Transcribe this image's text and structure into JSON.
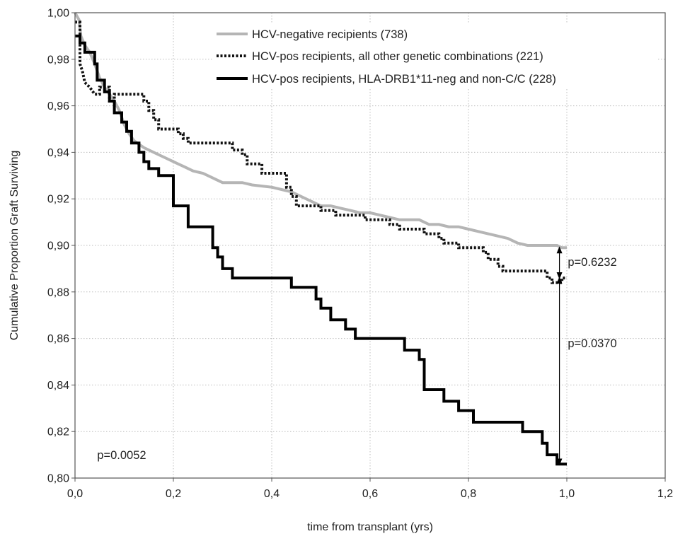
{
  "chart_data": {
    "type": "line",
    "xlabel": "time from transplant (yrs)",
    "ylabel": "Cumulative Proportion Graft Surviving",
    "xlim": [
      0.0,
      1.2
    ],
    "ylim": [
      0.8,
      1.0
    ],
    "xticks": [
      0.0,
      0.2,
      0.4,
      0.6,
      0.8,
      1.0,
      1.2
    ],
    "xtick_labels": [
      "0,0",
      "0,2",
      "0,4",
      "0,6",
      "0,8",
      "1,0",
      "1,2"
    ],
    "yticks": [
      0.8,
      0.82,
      0.84,
      0.86,
      0.88,
      0.9,
      0.92,
      0.94,
      0.96,
      0.98,
      1.0
    ],
    "ytick_labels": [
      "0,80",
      "0,82",
      "0,84",
      "0,86",
      "0,88",
      "0,90",
      "0,92",
      "0,94",
      "0,96",
      "0,98",
      "1,00"
    ],
    "grid": true,
    "legend_position": "top-right",
    "series": [
      {
        "name": "HCV-negative recipients (738)",
        "color": "#b5b5b5",
        "style": "solid-thick",
        "points": [
          [
            0.0,
            1.0
          ],
          [
            0.008,
            0.997
          ],
          [
            0.012,
            0.99
          ],
          [
            0.02,
            0.986
          ],
          [
            0.03,
            0.983
          ],
          [
            0.04,
            0.978
          ],
          [
            0.05,
            0.972
          ],
          [
            0.06,
            0.968
          ],
          [
            0.07,
            0.965
          ],
          [
            0.08,
            0.962
          ],
          [
            0.09,
            0.958
          ],
          [
            0.1,
            0.952
          ],
          [
            0.11,
            0.948
          ],
          [
            0.12,
            0.945
          ],
          [
            0.14,
            0.942
          ],
          [
            0.16,
            0.94
          ],
          [
            0.18,
            0.938
          ],
          [
            0.2,
            0.936
          ],
          [
            0.22,
            0.934
          ],
          [
            0.24,
            0.932
          ],
          [
            0.26,
            0.931
          ],
          [
            0.28,
            0.929
          ],
          [
            0.3,
            0.927
          ],
          [
            0.34,
            0.927
          ],
          [
            0.36,
            0.926
          ],
          [
            0.4,
            0.925
          ],
          [
            0.42,
            0.924
          ],
          [
            0.44,
            0.923
          ],
          [
            0.46,
            0.921
          ],
          [
            0.48,
            0.919
          ],
          [
            0.5,
            0.917
          ],
          [
            0.52,
            0.917
          ],
          [
            0.54,
            0.916
          ],
          [
            0.56,
            0.915
          ],
          [
            0.58,
            0.914
          ],
          [
            0.6,
            0.914
          ],
          [
            0.62,
            0.913
          ],
          [
            0.64,
            0.912
          ],
          [
            0.66,
            0.911
          ],
          [
            0.7,
            0.911
          ],
          [
            0.72,
            0.909
          ],
          [
            0.74,
            0.909
          ],
          [
            0.76,
            0.908
          ],
          [
            0.78,
            0.908
          ],
          [
            0.8,
            0.907
          ],
          [
            0.82,
            0.906
          ],
          [
            0.84,
            0.905
          ],
          [
            0.86,
            0.904
          ],
          [
            0.88,
            0.903
          ],
          [
            0.9,
            0.901
          ],
          [
            0.92,
            0.9
          ],
          [
            0.96,
            0.9
          ],
          [
            0.97,
            0.9
          ],
          [
            0.98,
            0.9
          ],
          [
            0.99,
            0.899
          ],
          [
            1.0,
            0.899
          ]
        ]
      },
      {
        "name": "HCV-pos recipients, all other genetic combinations (221)",
        "color": "#111111",
        "style": "dotted-thick",
        "points": [
          [
            0.0,
            0.996
          ],
          [
            0.01,
            0.996
          ],
          [
            0.01,
            0.978
          ],
          [
            0.015,
            0.975
          ],
          [
            0.02,
            0.97
          ],
          [
            0.03,
            0.968
          ],
          [
            0.04,
            0.965
          ],
          [
            0.05,
            0.965
          ],
          [
            0.05,
            0.968
          ],
          [
            0.07,
            0.968
          ],
          [
            0.07,
            0.962
          ],
          [
            0.08,
            0.962
          ],
          [
            0.08,
            0.965
          ],
          [
            0.14,
            0.965
          ],
          [
            0.14,
            0.962
          ],
          [
            0.15,
            0.962
          ],
          [
            0.15,
            0.958
          ],
          [
            0.16,
            0.958
          ],
          [
            0.16,
            0.954
          ],
          [
            0.17,
            0.954
          ],
          [
            0.17,
            0.95
          ],
          [
            0.21,
            0.95
          ],
          [
            0.21,
            0.948
          ],
          [
            0.22,
            0.948
          ],
          [
            0.22,
            0.946
          ],
          [
            0.23,
            0.946
          ],
          [
            0.23,
            0.944
          ],
          [
            0.32,
            0.944
          ],
          [
            0.32,
            0.941
          ],
          [
            0.34,
            0.941
          ],
          [
            0.34,
            0.939
          ],
          [
            0.35,
            0.939
          ],
          [
            0.35,
            0.935
          ],
          [
            0.38,
            0.935
          ],
          [
            0.38,
            0.931
          ],
          [
            0.43,
            0.931
          ],
          [
            0.43,
            0.925
          ],
          [
            0.44,
            0.925
          ],
          [
            0.44,
            0.921
          ],
          [
            0.45,
            0.921
          ],
          [
            0.45,
            0.917
          ],
          [
            0.5,
            0.917
          ],
          [
            0.5,
            0.915
          ],
          [
            0.53,
            0.915
          ],
          [
            0.53,
            0.913
          ],
          [
            0.59,
            0.913
          ],
          [
            0.59,
            0.911
          ],
          [
            0.64,
            0.911
          ],
          [
            0.64,
            0.909
          ],
          [
            0.66,
            0.909
          ],
          [
            0.66,
            0.907
          ],
          [
            0.71,
            0.907
          ],
          [
            0.71,
            0.905
          ],
          [
            0.74,
            0.905
          ],
          [
            0.74,
            0.903
          ],
          [
            0.75,
            0.903
          ],
          [
            0.75,
            0.901
          ],
          [
            0.78,
            0.901
          ],
          [
            0.78,
            0.899
          ],
          [
            0.83,
            0.899
          ],
          [
            0.83,
            0.897
          ],
          [
            0.84,
            0.897
          ],
          [
            0.84,
            0.894
          ],
          [
            0.86,
            0.894
          ],
          [
            0.86,
            0.891
          ],
          [
            0.87,
            0.891
          ],
          [
            0.87,
            0.889
          ],
          [
            0.96,
            0.889
          ],
          [
            0.96,
            0.886
          ],
          [
            0.97,
            0.886
          ],
          [
            0.97,
            0.884
          ],
          [
            0.99,
            0.884
          ],
          [
            0.99,
            0.886
          ],
          [
            1.0,
            0.886
          ]
        ]
      },
      {
        "name": "HCV-pos recipients, HLA-DRB1*11-neg and non-C/C (228)",
        "color": "#000000",
        "style": "solid-thick",
        "points": [
          [
            0.0,
            0.99
          ],
          [
            0.01,
            0.99
          ],
          [
            0.01,
            0.987
          ],
          [
            0.02,
            0.987
          ],
          [
            0.02,
            0.983
          ],
          [
            0.04,
            0.983
          ],
          [
            0.04,
            0.978
          ],
          [
            0.045,
            0.978
          ],
          [
            0.045,
            0.971
          ],
          [
            0.06,
            0.971
          ],
          [
            0.06,
            0.966
          ],
          [
            0.07,
            0.966
          ],
          [
            0.07,
            0.962
          ],
          [
            0.08,
            0.962
          ],
          [
            0.08,
            0.957
          ],
          [
            0.095,
            0.957
          ],
          [
            0.095,
            0.953
          ],
          [
            0.105,
            0.953
          ],
          [
            0.105,
            0.949
          ],
          [
            0.115,
            0.949
          ],
          [
            0.115,
            0.944
          ],
          [
            0.13,
            0.944
          ],
          [
            0.13,
            0.94
          ],
          [
            0.14,
            0.94
          ],
          [
            0.14,
            0.936
          ],
          [
            0.15,
            0.936
          ],
          [
            0.15,
            0.933
          ],
          [
            0.17,
            0.933
          ],
          [
            0.17,
            0.93
          ],
          [
            0.2,
            0.93
          ],
          [
            0.2,
            0.921
          ],
          [
            0.2,
            0.917
          ],
          [
            0.23,
            0.917
          ],
          [
            0.23,
            0.908
          ],
          [
            0.28,
            0.908
          ],
          [
            0.28,
            0.899
          ],
          [
            0.29,
            0.899
          ],
          [
            0.29,
            0.895
          ],
          [
            0.3,
            0.895
          ],
          [
            0.3,
            0.89
          ],
          [
            0.32,
            0.89
          ],
          [
            0.32,
            0.886
          ],
          [
            0.44,
            0.886
          ],
          [
            0.44,
            0.882
          ],
          [
            0.49,
            0.882
          ],
          [
            0.49,
            0.877
          ],
          [
            0.5,
            0.877
          ],
          [
            0.5,
            0.873
          ],
          [
            0.52,
            0.873
          ],
          [
            0.52,
            0.868
          ],
          [
            0.55,
            0.868
          ],
          [
            0.55,
            0.864
          ],
          [
            0.57,
            0.864
          ],
          [
            0.57,
            0.86
          ],
          [
            0.67,
            0.86
          ],
          [
            0.67,
            0.855
          ],
          [
            0.7,
            0.855
          ],
          [
            0.7,
            0.851
          ],
          [
            0.71,
            0.851
          ],
          [
            0.71,
            0.842
          ],
          [
            0.71,
            0.838
          ],
          [
            0.75,
            0.838
          ],
          [
            0.75,
            0.833
          ],
          [
            0.78,
            0.833
          ],
          [
            0.78,
            0.829
          ],
          [
            0.81,
            0.829
          ],
          [
            0.81,
            0.824
          ],
          [
            0.91,
            0.824
          ],
          [
            0.91,
            0.82
          ],
          [
            0.95,
            0.82
          ],
          [
            0.95,
            0.815
          ],
          [
            0.96,
            0.815
          ],
          [
            0.96,
            0.81
          ],
          [
            0.98,
            0.81
          ],
          [
            0.98,
            0.806
          ],
          [
            1.0,
            0.806
          ]
        ]
      }
    ],
    "annotations": [
      {
        "text": "p=0.6232",
        "x": 1.002,
        "y": 0.893
      },
      {
        "text": "p=0.0370",
        "x": 1.002,
        "y": 0.858
      },
      {
        "text": "p=0.0052",
        "x": 0.045,
        "y": 0.81
      }
    ],
    "comparison_arrows": [
      {
        "x": 0.985,
        "y_from": 0.899,
        "y_to": 0.886
      },
      {
        "x": 0.985,
        "y_from": 0.886,
        "y_to": 0.806
      }
    ]
  }
}
